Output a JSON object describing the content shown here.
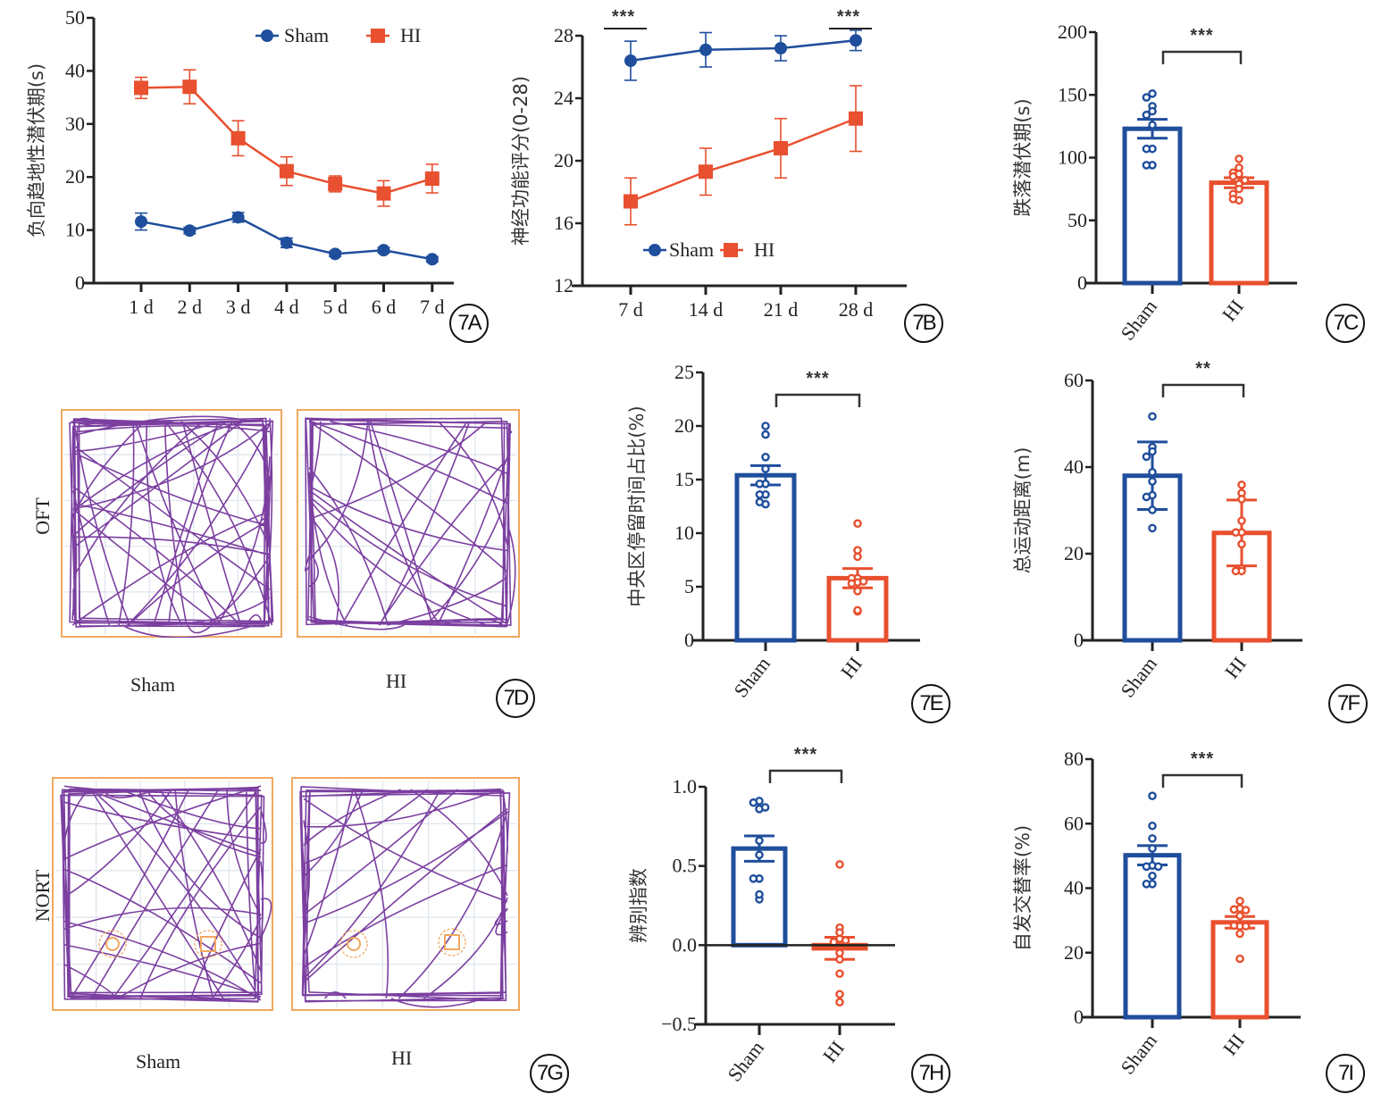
{
  "colors": {
    "sham": "#1f4e9c",
    "hi": "#e8502f",
    "axis": "#222222",
    "track": "#7b3fa0",
    "arena": "#f0a860",
    "grid": "#dfe6ee"
  },
  "panel_tags": [
    "7A",
    "7B",
    "7C",
    "7D",
    "7E",
    "7F",
    "7G",
    "7H",
    "7I"
  ],
  "chart_data": [
    {
      "id": "7A",
      "type": "line",
      "title": "",
      "xlabel": "",
      "ylabel": "负向趋地性潜伏期(s)",
      "categories": [
        "1 d",
        "2 d",
        "3 d",
        "4 d",
        "5 d",
        "6 d",
        "7 d"
      ],
      "ylim": [
        0,
        50
      ],
      "yticks": [
        0,
        10,
        20,
        30,
        40,
        50
      ],
      "legend": {
        "placement": "top-right",
        "entries": [
          "Sham",
          "HI"
        ]
      },
      "series": [
        {
          "name": "Sham",
          "marker": "circle",
          "values": [
            11.6,
            9.9,
            12.4,
            7.6,
            5.5,
            6.2,
            4.5
          ],
          "errors": [
            1.6,
            0.6,
            0.9,
            0.9,
            0.5,
            0.5,
            0.5
          ]
        },
        {
          "name": "HI",
          "marker": "square",
          "values": [
            36.8,
            37.0,
            27.3,
            21.1,
            18.7,
            16.9,
            19.7
          ],
          "errors": [
            2.0,
            3.2,
            3.3,
            2.7,
            1.5,
            2.4,
            2.7
          ]
        }
      ]
    },
    {
      "id": "7B",
      "type": "line",
      "title": "",
      "xlabel": "",
      "ylabel": "神经功能评分(0-28)",
      "categories": [
        "7 d",
        "14 d",
        "21 d",
        "28 d"
      ],
      "ylim": [
        12,
        28
      ],
      "yticks": [
        12,
        16,
        20,
        24,
        28
      ],
      "legend": {
        "placement": "bottom-left",
        "entries": [
          "Sham",
          "HI"
        ]
      },
      "significance": [
        {
          "category": "7 d",
          "label": "***"
        },
        {
          "category": "28 d",
          "label": "***"
        }
      ],
      "series": [
        {
          "name": "Sham",
          "marker": "circle",
          "values": [
            26.4,
            27.1,
            27.2,
            27.7
          ],
          "errors": [
            1.25,
            1.1,
            0.8,
            0.65
          ]
        },
        {
          "name": "HI",
          "marker": "square",
          "values": [
            17.4,
            19.3,
            20.8,
            22.7
          ],
          "errors": [
            1.5,
            1.5,
            1.9,
            2.1
          ]
        }
      ]
    },
    {
      "id": "7C",
      "type": "bar",
      "ylabel": "跌落潜伏期(s)",
      "categories": [
        "Sham",
        "HI"
      ],
      "ylim": [
        0,
        200
      ],
      "yticks": [
        0,
        50,
        100,
        150,
        200
      ],
      "significance": "***",
      "series": [
        {
          "name": "Sham",
          "value": 123,
          "error": 7.5,
          "points": [
            151,
            148,
            141,
            137,
            134,
            126,
            107,
            107,
            94,
            94
          ]
        },
        {
          "name": "HI",
          "value": 80,
          "error": 4,
          "points": [
            99,
            92,
            88,
            87,
            85,
            82,
            79,
            75,
            71,
            66,
            67
          ]
        }
      ]
    },
    {
      "id": "7E",
      "type": "bar",
      "ylabel": "中央区停留时间占比(%)",
      "categories": [
        "Sham",
        "HI"
      ],
      "ylim": [
        0,
        25
      ],
      "yticks": [
        0,
        5,
        10,
        15,
        20,
        25
      ],
      "significance": "***",
      "series": [
        {
          "name": "Sham",
          "value": 15.4,
          "error": 0.9,
          "points": [
            20.0,
            19.2,
            17.1,
            16.0,
            14.6,
            14.6,
            13.6,
            13.6,
            12.7,
            12.9
          ]
        },
        {
          "name": "HI",
          "value": 5.8,
          "error": 0.9,
          "points": [
            10.9,
            8.4,
            7.8,
            5.8,
            5.8,
            5.4,
            5.3,
            5.5,
            4.6,
            2.7,
            2.8
          ]
        }
      ]
    },
    {
      "id": "7F",
      "type": "bar",
      "ylabel": "总运动距离(m)",
      "categories": [
        "Sham",
        "HI"
      ],
      "ylim": [
        0,
        60
      ],
      "yticks": [
        0,
        20,
        40,
        60
      ],
      "significance": "**",
      "series": [
        {
          "name": "Sham",
          "value": 38,
          "error": 7.8,
          "points": [
            51.7,
            44.6,
            43.6,
            42.4,
            38.8,
            36.7,
            33.5,
            33.1,
            30.1,
            25.9
          ]
        },
        {
          "name": "HI",
          "value": 24.8,
          "error": 7.6,
          "points": [
            35.9,
            34.0,
            32.6,
            27.6,
            24.9,
            24.9,
            22.2,
            16.6,
            16.0,
            16.0
          ]
        }
      ]
    },
    {
      "id": "7H",
      "type": "bar",
      "ylabel": "辨别指数",
      "categories": [
        "Sham",
        "HI"
      ],
      "ylim": [
        -0.5,
        1.0
      ],
      "yticks": [
        -0.5,
        0.0,
        0.5,
        1.0
      ],
      "ytick_labels": [
        "−0.5",
        "0.0",
        "0.5",
        "1.0"
      ],
      "significance": "***",
      "series": [
        {
          "name": "Sham",
          "value": 0.61,
          "error": 0.08,
          "points": [
            0.91,
            0.9,
            0.86,
            0.87,
            0.66,
            0.57,
            0.42,
            0.42,
            0.29,
            0.32
          ]
        },
        {
          "name": "HI",
          "value": -0.02,
          "error": 0.07,
          "points": [
            0.51,
            0.11,
            0.08,
            0.04,
            0.02,
            0.03,
            -0.05,
            -0.09,
            -0.18,
            -0.31,
            -0.36
          ]
        }
      ]
    },
    {
      "id": "7I",
      "type": "bar",
      "ylabel": "自发交替率(%)",
      "categories": [
        "Sham",
        "HI"
      ],
      "ylim": [
        0,
        80
      ],
      "yticks": [
        0,
        20,
        40,
        60,
        80
      ],
      "significance": "***",
      "series": [
        {
          "name": "Sham",
          "value": 50.2,
          "error": 3.0,
          "points": [
            68.6,
            59.3,
            55.4,
            52.3,
            47.0,
            46.7,
            46.7,
            43.8,
            41.3,
            41.3
          ]
        },
        {
          "name": "HI",
          "value": 29.4,
          "error": 1.8,
          "points": [
            36.0,
            33.7,
            33.4,
            33.2,
            31.4,
            28.2,
            28.4,
            28.2,
            25.9,
            18.1
          ]
        }
      ]
    }
  ],
  "tracks": {
    "oft": {
      "row_label": "OFT",
      "groups": [
        "Sham",
        "HI"
      ]
    },
    "nort": {
      "row_label": "NORT",
      "groups": [
        "Sham",
        "HI"
      ]
    }
  }
}
